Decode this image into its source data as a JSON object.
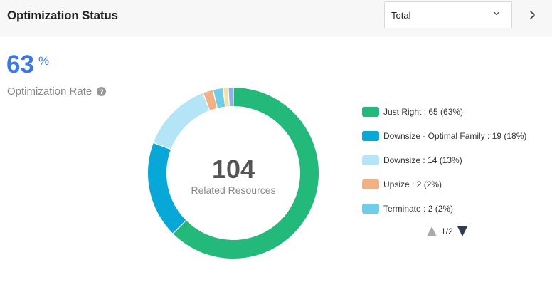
{
  "header": {
    "title": "Optimization Status",
    "select_value": "Total",
    "caret_icon": "chevron-down-icon",
    "next_icon": "chevron-right-icon"
  },
  "rate": {
    "value": "63",
    "unit": "%",
    "label": "Optimization Rate",
    "help_icon": "question-circle-icon",
    "help_glyph": "?"
  },
  "chart": {
    "center_value": "104",
    "center_label": "Related Resources"
  },
  "chart_data": {
    "type": "pie",
    "total": 104,
    "slices": [
      {
        "label": "Just Right",
        "value": 65,
        "percent": 63,
        "color": "#22b97a"
      },
      {
        "label": "Downsize - Optimal Family",
        "value": 19,
        "percent": 18,
        "color": "#07a7d8"
      },
      {
        "label": "Downsize",
        "value": 14,
        "percent": 13,
        "color": "#b3e5f7"
      },
      {
        "label": "Upsize",
        "value": 2,
        "percent": 2,
        "color": "#f2b184"
      },
      {
        "label": "Terminate",
        "value": 2,
        "percent": 2,
        "color": "#6fcde8"
      },
      {
        "label": "",
        "value": 1,
        "percent": 1,
        "color": "#f7e19c"
      },
      {
        "label": "",
        "value": 1,
        "percent": 1,
        "color": "#8fb0ee"
      }
    ]
  },
  "legend": {
    "items": [
      {
        "text": "Just Right : 65 (63%)",
        "color": "#22b97a"
      },
      {
        "text": "Downsize - Optimal Family : 19 (18%)",
        "color": "#07a7d8"
      },
      {
        "text": "Downsize : 14 (13%)",
        "color": "#b3e5f7"
      },
      {
        "text": "Upsize : 2 (2%)",
        "color": "#f2b184"
      },
      {
        "text": "Terminate : 2 (2%)",
        "color": "#6fcde8"
      }
    ],
    "page": "1/2"
  }
}
